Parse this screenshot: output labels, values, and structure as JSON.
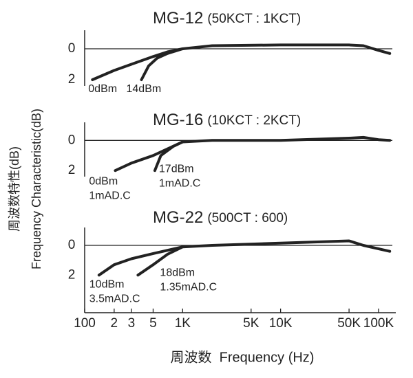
{
  "chart_data": [
    {
      "type": "line",
      "title": "MG-12",
      "subtitle": "(50KCT : 1KCT)",
      "log_x": true,
      "xlim": [
        100,
        150000
      ],
      "ylim": [
        2.4,
        -1.2
      ],
      "yticks": [
        0,
        2
      ],
      "series": [
        {
          "name": "0dBm",
          "color": "#222222",
          "x": [
            120,
            200,
            300,
            500,
            700,
            1000,
            2000,
            10000,
            50000,
            70000,
            100000,
            130000
          ],
          "values": [
            2.0,
            1.4,
            1.0,
            0.5,
            0.2,
            0.0,
            -0.2,
            -0.25,
            -0.25,
            -0.2,
            0.1,
            0.3
          ]
        },
        {
          "name": "14dBm",
          "color": "#222222",
          "x": [
            380,
            450,
            550,
            700,
            1000
          ],
          "values": [
            2.0,
            1.1,
            0.6,
            0.3,
            0.0
          ]
        }
      ]
    },
    {
      "type": "line",
      "title": "MG-16",
      "subtitle": "(10KCT : 2KCT)",
      "log_x": true,
      "xlim": [
        100,
        150000
      ],
      "ylim": [
        2.4,
        -1.2
      ],
      "yticks": [
        0,
        2
      ],
      "ylabel": [
        "周波数特性(dB)",
        "Frequency Characteristic(dB)"
      ],
      "series": [
        {
          "name": "0dBm",
          "note": "1mAD.C",
          "color": "#222222",
          "x": [
            205,
            300,
            500,
            1000,
            2000,
            10000,
            50000,
            70000,
            100000,
            130000
          ],
          "values": [
            2.0,
            1.5,
            1.0,
            0.1,
            0.0,
            0.0,
            -0.15,
            -0.2,
            -0.05,
            0.0
          ]
        },
        {
          "name": "17dBm",
          "note": "1mAD.C",
          "color": "#222222",
          "x": [
            520,
            600,
            800,
            1000
          ],
          "values": [
            2.0,
            1.0,
            0.4,
            0.1
          ]
        }
      ]
    },
    {
      "type": "line",
      "title": "MG-22",
      "subtitle": "(500CT : 600)",
      "log_x": true,
      "xlim": [
        100,
        150000
      ],
      "ylim": [
        2.4,
        -1.2
      ],
      "yticks": [
        0,
        2
      ],
      "xlabel": "周波数  Frequency (Hz)",
      "xticks": [
        100,
        {
          "value": 200,
          "label": "2"
        },
        {
          "value": 300,
          "label": "3"
        },
        {
          "value": 500,
          "label": "5"
        },
        {
          "value": 1000,
          "label": "1K"
        },
        {
          "value": 5000,
          "label": "5K"
        },
        {
          "value": 10000,
          "label": "10K"
        },
        {
          "value": 50000,
          "label": "50K"
        },
        {
          "value": 100000,
          "label": "100K"
        }
      ],
      "series": [
        {
          "name": "10dBm",
          "note": "3.5mAD.C",
          "color": "#222222",
          "x": [
            140,
            200,
            300,
            500,
            1000,
            2000,
            10000,
            50000,
            70000,
            130000
          ],
          "values": [
            2.0,
            1.3,
            0.9,
            0.55,
            0.1,
            0.0,
            -0.15,
            -0.3,
            0.0,
            0.4
          ]
        },
        {
          "name": "18dBm",
          "note": "1.35mAD.C",
          "color": "#222222",
          "x": [
            350,
            500,
            700,
            1000
          ],
          "values": [
            2.0,
            1.3,
            0.6,
            0.1
          ]
        }
      ]
    }
  ]
}
